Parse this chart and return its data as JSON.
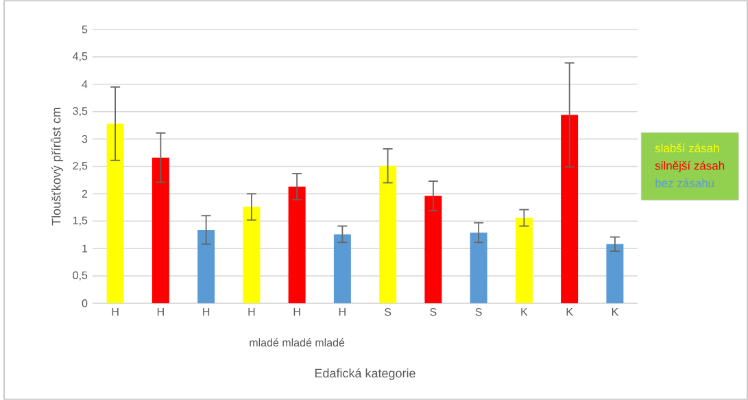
{
  "chart_data": {
    "type": "bar",
    "xlabel": "Edafická kategorie",
    "ylabel": "Tloušťkový přírůst cm",
    "categories": [
      "H",
      "H",
      "H",
      "H",
      "H",
      "H",
      "S",
      "S",
      "S",
      "K",
      "K",
      "K"
    ],
    "series": [
      {
        "name": "slabší zásah",
        "color": "#ffff00",
        "values": [
          3.28,
          null,
          null,
          1.76,
          null,
          null,
          2.51,
          null,
          null,
          1.56,
          null,
          null
        ],
        "errors": [
          0.67,
          null,
          null,
          0.24,
          null,
          null,
          0.31,
          null,
          null,
          0.15,
          null,
          null
        ]
      },
      {
        "name": "silnější zásah",
        "color": "#ff0000",
        "values": [
          null,
          2.66,
          null,
          null,
          2.13,
          null,
          null,
          1.96,
          null,
          null,
          3.44,
          null
        ],
        "errors": [
          null,
          0.45,
          null,
          null,
          0.24,
          null,
          null,
          0.27,
          null,
          null,
          0.95,
          null
        ]
      },
      {
        "name": "bez zásahu",
        "color": "#5b9bd5",
        "values": [
          null,
          null,
          1.34,
          null,
          null,
          1.26,
          null,
          null,
          1.29,
          null,
          null,
          1.08
        ],
        "errors": [
          null,
          null,
          0.26,
          null,
          null,
          0.15,
          null,
          null,
          0.18,
          null,
          null,
          0.13
        ]
      }
    ],
    "annotations": [
      "mladé mladé mladé"
    ],
    "ylim": [
      0,
      5
    ],
    "yticks": [
      0,
      {
        "value": 0.5,
        "label": "0,5"
      },
      1,
      {
        "value": 1.5,
        "label": "1,5"
      },
      2,
      {
        "value": 2.5,
        "label": "2,5"
      },
      3,
      {
        "value": 3.5,
        "label": "3,5"
      },
      4,
      {
        "value": 4.5,
        "label": "4,5"
      },
      5
    ],
    "grid": "y",
    "legend": "right"
  }
}
